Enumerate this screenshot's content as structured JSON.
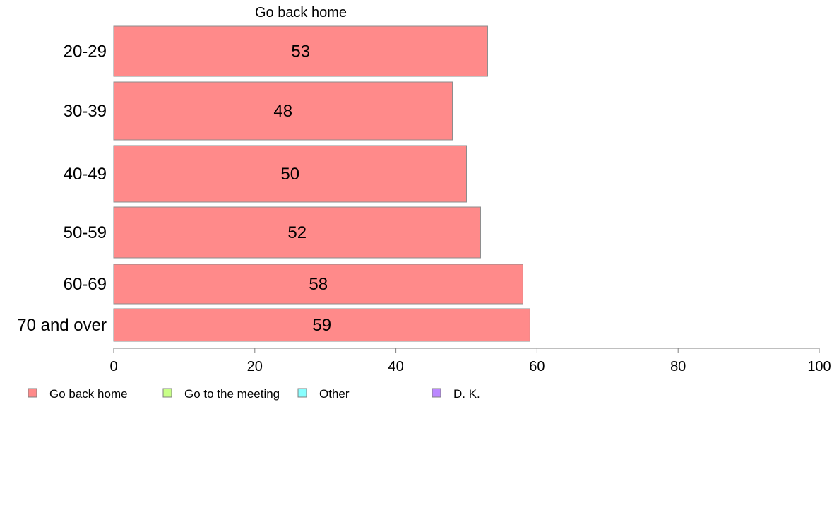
{
  "chart_data": {
    "type": "bar",
    "orientation": "horizontal",
    "header": "Go back home",
    "categories": [
      "20-29",
      "30-39",
      "40-49",
      "50-59",
      "60-69",
      "70 and over"
    ],
    "series": [
      {
        "name": "Go back home",
        "color": "#ff8a8a",
        "values": [
          53,
          48,
          50,
          52,
          58,
          59
        ]
      }
    ],
    "xlim": [
      0,
      100
    ],
    "xticks": [
      0,
      20,
      40,
      60,
      80,
      100
    ],
    "grid": false,
    "legend": {
      "placement": "bottom",
      "items": [
        {
          "label": "Go back home",
          "color": "#ff8a8a"
        },
        {
          "label": "Go to the meeting",
          "color": "#c8ff88"
        },
        {
          "label": "Other",
          "color": "#88ffff"
        },
        {
          "label": "D. K.",
          "color": "#bb88ff"
        }
      ]
    }
  }
}
